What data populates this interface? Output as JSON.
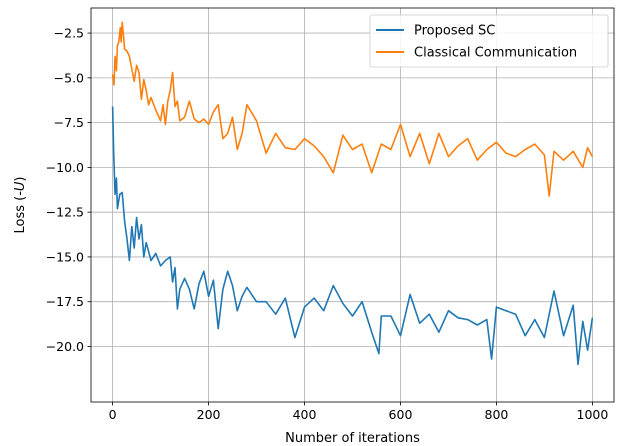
{
  "chart_data": {
    "type": "line",
    "xlabel": "Number of iterations",
    "ylabel_prefix": "Loss (",
    "ylabel_var": "-U",
    "ylabel_suffix": ")",
    "xlim": [
      -45,
      1045
    ],
    "ylim": [
      -23.1,
      -1.1
    ],
    "xticks": [
      0,
      200,
      400,
      600,
      800,
      1000
    ],
    "xtick_labels": [
      "0",
      "200",
      "400",
      "600",
      "800",
      "1000"
    ],
    "yticks": [
      -2.5,
      -5.0,
      -7.5,
      -10.0,
      -12.5,
      -15.0,
      -17.5,
      -20.0
    ],
    "ytick_labels": [
      "−2.5",
      "−5.0",
      "−7.5",
      "−10.0",
      "−12.5",
      "−15.0",
      "−17.5",
      "−20.0"
    ],
    "grid": true,
    "legend_position": "top-right",
    "series": [
      {
        "name": "Proposed SC",
        "color": "#1f77b4",
        "x": [
          0,
          2,
          5,
          8,
          10,
          15,
          20,
          25,
          30,
          35,
          40,
          45,
          50,
          55,
          60,
          65,
          70,
          80,
          90,
          100,
          110,
          120,
          125,
          130,
          135,
          140,
          150,
          160,
          170,
          180,
          190,
          200,
          210,
          220,
          230,
          240,
          250,
          260,
          270,
          280,
          300,
          320,
          340,
          360,
          380,
          400,
          420,
          440,
          460,
          480,
          500,
          520,
          540,
          555,
          560,
          580,
          600,
          620,
          640,
          660,
          680,
          700,
          720,
          740,
          760,
          780,
          790,
          800,
          820,
          840,
          860,
          880,
          900,
          920,
          940,
          960,
          970,
          980,
          990,
          1000
        ],
        "y": [
          -6.6,
          -9.0,
          -11.5,
          -10.6,
          -12.3,
          -11.5,
          -11.4,
          -13.0,
          -14.0,
          -15.2,
          -13.3,
          -14.5,
          -12.8,
          -14.0,
          -13.2,
          -15.0,
          -14.2,
          -15.2,
          -14.8,
          -15.5,
          -15.2,
          -15.0,
          -16.4,
          -15.6,
          -17.9,
          -16.8,
          -16.2,
          -16.8,
          -17.9,
          -16.5,
          -15.8,
          -17.2,
          -16.3,
          -19.0,
          -16.8,
          -15.8,
          -16.6,
          -18.0,
          -17.2,
          -16.7,
          -17.5,
          -17.5,
          -18.2,
          -17.3,
          -19.5,
          -17.8,
          -17.3,
          -18.0,
          -16.6,
          -17.6,
          -18.3,
          -17.5,
          -19.2,
          -20.4,
          -18.3,
          -18.3,
          -19.4,
          -17.1,
          -18.7,
          -18.2,
          -19.2,
          -18.0,
          -18.4,
          -18.5,
          -18.8,
          -18.5,
          -20.7,
          -17.8,
          -18.0,
          -18.2,
          -19.4,
          -18.5,
          -19.5,
          -16.9,
          -19.4,
          -17.7,
          -21.0,
          -18.6,
          -20.2,
          -18.4
        ]
      },
      {
        "name": "Classical Communication",
        "color": "#ff7f0e",
        "x": [
          0,
          3,
          5,
          8,
          10,
          13,
          16,
          18,
          20,
          23,
          25,
          30,
          35,
          40,
          45,
          50,
          55,
          60,
          65,
          70,
          75,
          80,
          90,
          100,
          105,
          110,
          115,
          120,
          125,
          130,
          135,
          140,
          150,
          160,
          170,
          180,
          190,
          200,
          210,
          220,
          230,
          240,
          250,
          260,
          270,
          280,
          300,
          320,
          340,
          360,
          380,
          400,
          420,
          440,
          460,
          480,
          500,
          520,
          540,
          560,
          580,
          600,
          620,
          640,
          660,
          680,
          700,
          720,
          740,
          760,
          780,
          800,
          820,
          840,
          860,
          880,
          900,
          910,
          920,
          940,
          960,
          980,
          990,
          1000
        ],
        "y": [
          -4.8,
          -5.4,
          -3.8,
          -4.6,
          -3.2,
          -3.0,
          -2.2,
          -3.0,
          -1.9,
          -2.7,
          -3.4,
          -3.5,
          -3.8,
          -4.5,
          -5.2,
          -4.3,
          -4.7,
          -6.2,
          -5.1,
          -5.7,
          -6.5,
          -6.1,
          -6.8,
          -7.4,
          -6.5,
          -7.6,
          -6.3,
          -5.7,
          -4.7,
          -6.6,
          -6.3,
          -7.4,
          -7.2,
          -6.3,
          -7.3,
          -7.5,
          -7.3,
          -7.6,
          -6.9,
          -6.5,
          -8.4,
          -8.1,
          -7.2,
          -9.0,
          -8.1,
          -6.5,
          -7.4,
          -9.2,
          -8.1,
          -8.9,
          -9.0,
          -8.4,
          -8.8,
          -9.4,
          -10.3,
          -8.2,
          -9.0,
          -8.7,
          -10.3,
          -8.7,
          -9.0,
          -7.6,
          -9.4,
          -8.1,
          -9.8,
          -8.1,
          -9.4,
          -8.8,
          -8.4,
          -9.6,
          -9.0,
          -8.6,
          -9.2,
          -9.4,
          -9.0,
          -8.7,
          -9.3,
          -11.6,
          -9.1,
          -9.6,
          -9.1,
          -10.0,
          -8.9,
          -9.4
        ]
      }
    ]
  }
}
